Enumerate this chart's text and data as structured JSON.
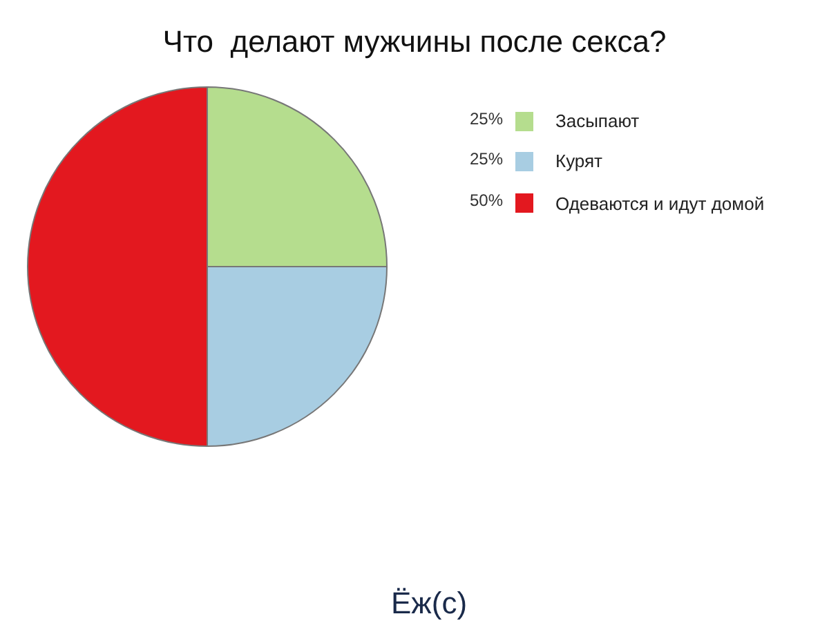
{
  "chart_data": {
    "type": "pie",
    "title": "Что  делают мужчины после секса?",
    "categories": [
      "Засыпают",
      "Курят",
      "Одеваются и идут домой"
    ],
    "values": [
      25,
      25,
      50
    ],
    "colors": [
      "#b5dd8e",
      "#a8cde2",
      "#e3181f"
    ],
    "value_labels": [
      "25%",
      "25%",
      "50%"
    ],
    "legend": "right",
    "annotations": [
      "Ёж(с)"
    ]
  }
}
